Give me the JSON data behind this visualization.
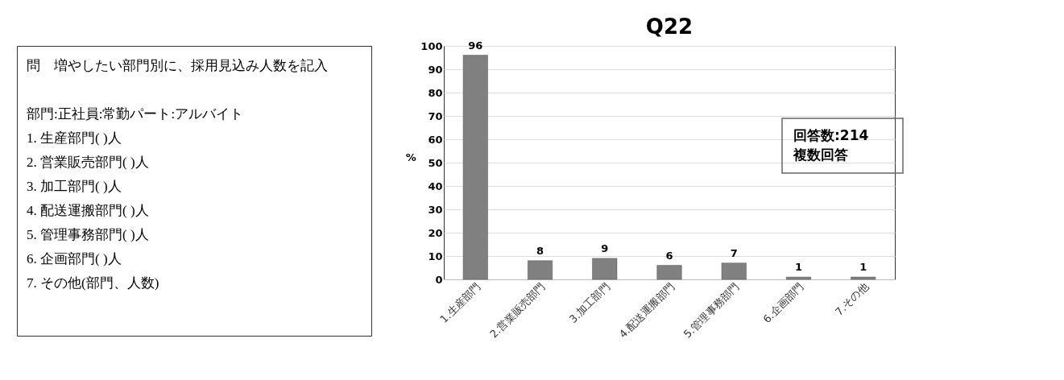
{
  "chart_data": [
    {
      "type": "other",
      "annotations": [
        "問　増やしたい部門別に、採用見込み人数を記入",
        "部門:正社員:常勤パート:アルバイト",
        "1. 生産部門( )人",
        "2. 営業販売部門( )人",
        "3. 加工部門( )人",
        "4. 配送運搬部門( )人",
        "5. 管理事務部門( )人",
        "6. 企画部門( )人",
        "7. その他(部門、人数)"
      ]
    },
    {
      "type": "bar",
      "title": "Q22",
      "ylabel": "%",
      "categories": [
        "1.生産部門",
        "2.営業販売部門",
        "3.加工部門",
        "4.配送運搬部門",
        "5.管理事務部門",
        "6.企画部門",
        "7.その他"
      ],
      "values": [
        96,
        8,
        9,
        6,
        7,
        1,
        1
      ],
      "color": "#808080",
      "ylim": [
        0,
        100
      ],
      "yticks": [
        0,
        10,
        20,
        30,
        40,
        50,
        60,
        70,
        80,
        90,
        100
      ],
      "grid": "y",
      "data_labels": true,
      "annotations": [
        "回答数:214",
        "複数回答"
      ]
    }
  ]
}
